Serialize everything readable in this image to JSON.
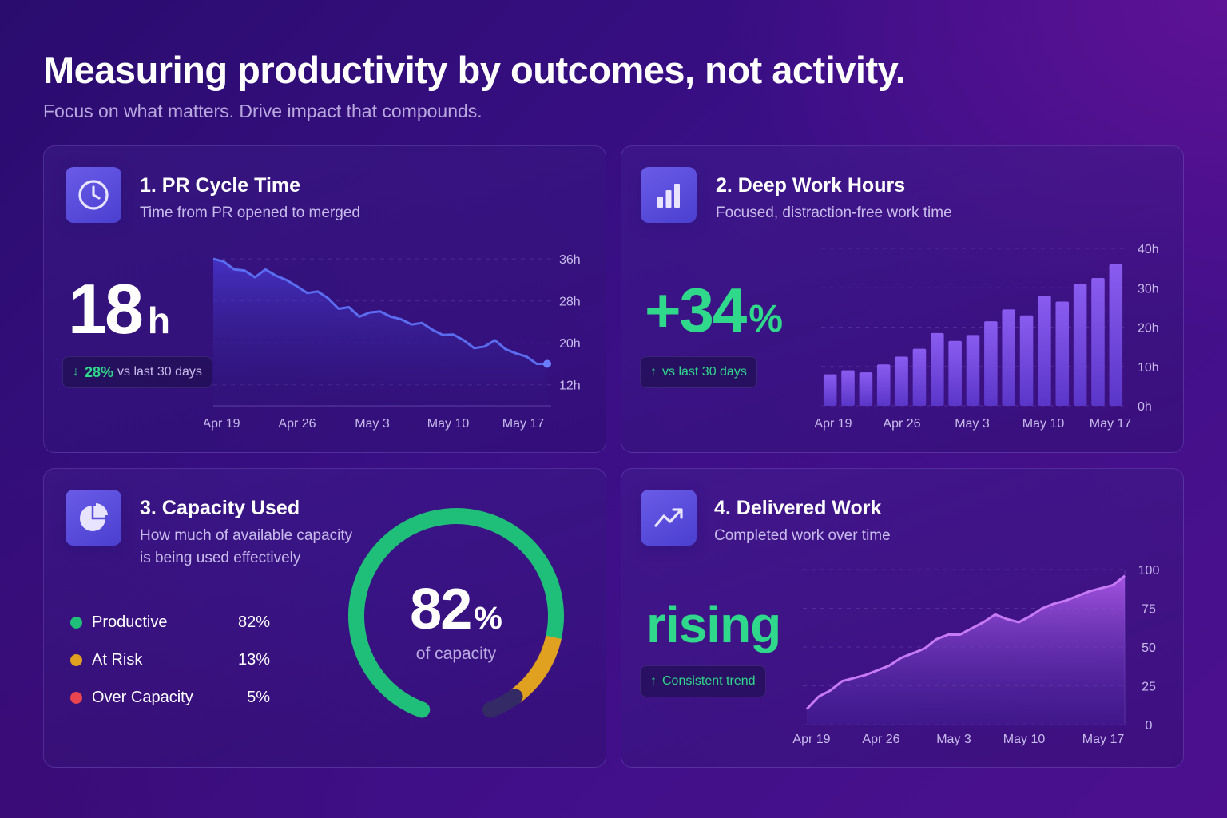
{
  "header": {
    "title": "Measuring productivity by outcomes, not activity.",
    "subtitle": "Focus on what matters. Drive impact that compounds."
  },
  "cards": [
    {
      "title": "1. PR Cycle Time",
      "subtitle": "Time from PR opened to merged",
      "icon": "clock-icon",
      "value_number": "18",
      "value_unit": "h",
      "pill_delta": "28%",
      "pill_text": "vs last 30 days"
    },
    {
      "title": "2. Deep Work Hours",
      "subtitle": "Focused, distraction-free work time",
      "icon": "bar-chart-icon",
      "value_number": "+34",
      "value_unit": "%",
      "pill_text": "vs last 30 days"
    },
    {
      "title": "3. Capacity Used",
      "subtitle_line1": "How much of available capacity",
      "subtitle_line2": "is being used effectively",
      "icon": "pie-chart-icon",
      "gauge_value": "82",
      "gauge_unit": "%",
      "gauge_caption": "of capacity"
    },
    {
      "title": "4. Delivered Work",
      "subtitle": "Completed work over time",
      "icon": "trend-up-icon",
      "value_text": "rising",
      "pill_text": "Consistent trend"
    }
  ],
  "colors": {
    "accent_green": "#2fd88a",
    "line_blue": "#5b6cf0",
    "bar_purple": "#7b4fe8",
    "area_violet": "#b45ef0",
    "productive": "#1fbf7a",
    "at_risk": "#e0a020",
    "over_capacity": "#e8454e"
  },
  "chart_data": [
    {
      "type": "area",
      "x_ticks": [
        "Apr 19",
        "Apr 26",
        "May 3",
        "May 10",
        "May 17"
      ],
      "y_ticks": [
        "36h",
        "28h",
        "20h",
        "12h"
      ],
      "ylim": [
        8,
        38
      ],
      "values": [
        36,
        35.5,
        34,
        33.8,
        32.5,
        34,
        32.8,
        32,
        30.8,
        29.5,
        29.8,
        28.5,
        26.5,
        26.8,
        25,
        25.8,
        26,
        25,
        24.5,
        23.5,
        23.8,
        22.5,
        21.5,
        21.6,
        20.5,
        19,
        19.3,
        20.5,
        18.8,
        18,
        17.4,
        16,
        16
      ],
      "grid": true
    },
    {
      "type": "bar",
      "x_ticks": [
        "Apr 19",
        "Apr 26",
        "May 3",
        "May 10",
        "May 17"
      ],
      "y_ticks": [
        "40h",
        "30h",
        "20h",
        "10h",
        "0h"
      ],
      "ylim": [
        0,
        40
      ],
      "values": [
        8,
        9,
        8.5,
        10.5,
        12.5,
        14.5,
        18.5,
        16.5,
        18,
        21.5,
        24.5,
        23,
        28,
        26.5,
        31,
        32.5,
        36
      ],
      "grid": true
    },
    {
      "type": "pie",
      "center_label": "82%",
      "slices": [
        {
          "label": "Productive",
          "value": 82,
          "display": "82%"
        },
        {
          "label": "At Risk",
          "value": 13,
          "display": "13%"
        },
        {
          "label": "Over Capacity",
          "value": 5,
          "display": "5%"
        }
      ]
    },
    {
      "type": "area",
      "x_ticks": [
        "Apr 19",
        "Apr 26",
        "May 3",
        "May 10",
        "May 17"
      ],
      "y_ticks": [
        "100",
        "75",
        "50",
        "25",
        "0"
      ],
      "ylim": [
        0,
        100
      ],
      "values": [
        10,
        18,
        22,
        28,
        30,
        32,
        35,
        38,
        43,
        46,
        49,
        55,
        58,
        58,
        62,
        66,
        71,
        68,
        66,
        70,
        75,
        78,
        80,
        83,
        86,
        88,
        90,
        96
      ],
      "grid": true
    }
  ]
}
